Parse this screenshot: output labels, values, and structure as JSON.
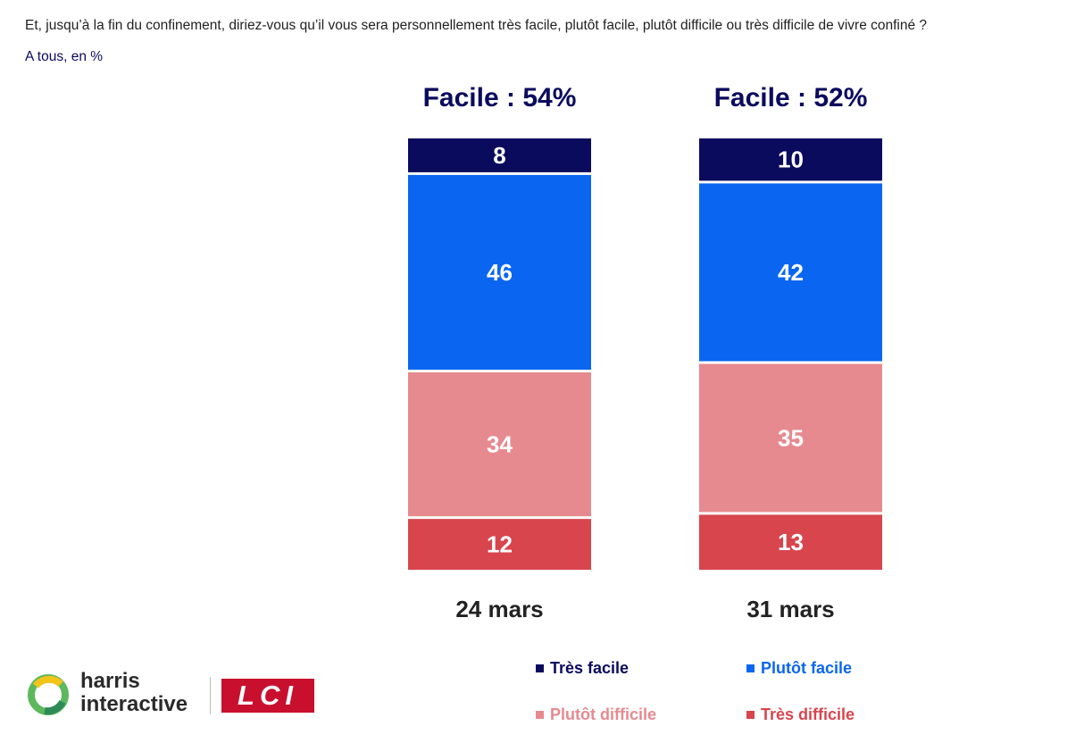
{
  "header": {
    "question": "Et, jusqu’à la fin du confinement, diriez-vous qu’il vous sera personnellement très facile, plutôt facile, plutôt difficile ou très difficile de vivre confiné ?",
    "base": "A tous, en %"
  },
  "chart_data": {
    "type": "bar",
    "stacked": true,
    "categories": [
      "24 mars",
      "31 mars"
    ],
    "group_titles": [
      "Facile : 54%",
      "Facile : 52%"
    ],
    "series": [
      {
        "name": "Très difficile",
        "values": [
          12,
          13
        ],
        "color": "#d8454d"
      },
      {
        "name": "Plutôt difficile",
        "values": [
          34,
          35
        ],
        "color": "#e68a8f"
      },
      {
        "name": "Plutôt facile",
        "values": [
          46,
          42
        ],
        "color": "#0a66f0"
      },
      {
        "name": "Très facile",
        "values": [
          8,
          10
        ],
        "color": "#0b0b5e"
      }
    ],
    "ylim": [
      0,
      100
    ],
    "grid": false,
    "legend_position": "bottom-right"
  },
  "logos": {
    "harris_line1": "harris",
    "harris_line2": "interactive",
    "lci": "LCI"
  }
}
